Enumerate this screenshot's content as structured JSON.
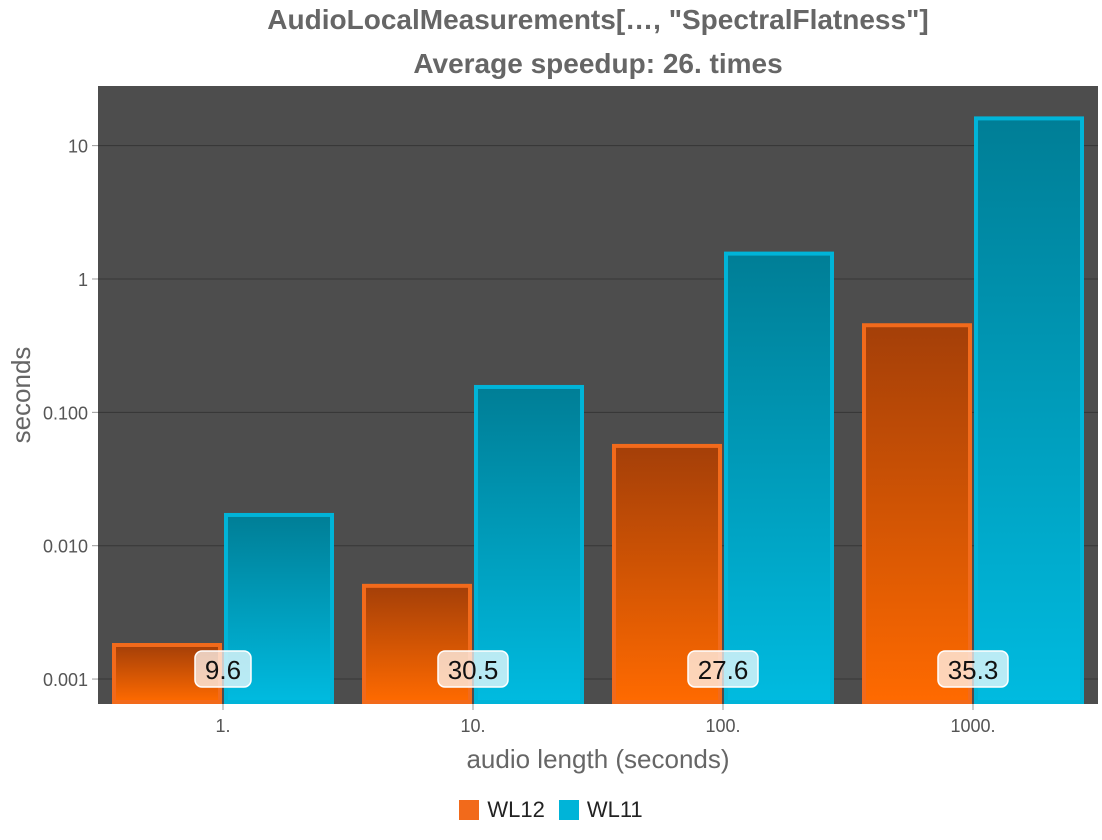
{
  "chart_data": {
    "type": "bar",
    "title": "AudioLocalMeasurements[…, \"SpectralFlatness\"]",
    "subtitle": "Average speedup: 26. times",
    "xlabel": "audio length (seconds)",
    "ylabel": "seconds",
    "yscale": "log",
    "ylim": [
      0.00065,
      28
    ],
    "yticks": [
      0.001,
      0.01,
      0.1,
      1,
      10
    ],
    "ytick_labels": [
      "0.001",
      "0.010",
      "0.100",
      "1",
      "10"
    ],
    "categories": [
      "1.",
      "10.",
      "100.",
      "1000."
    ],
    "series": [
      {
        "name": "WL12",
        "color": "#f26a1b",
        "values": [
          0.0018,
          0.005,
          0.056,
          0.45
        ]
      },
      {
        "name": "WL11",
        "color": "#00b4d8",
        "values": [
          0.017,
          0.155,
          1.55,
          16
        ]
      }
    ],
    "speedup_labels": [
      "9.6",
      "30.5",
      "27.6",
      "35.3"
    ],
    "grid": true,
    "legend_position": "bottom"
  }
}
